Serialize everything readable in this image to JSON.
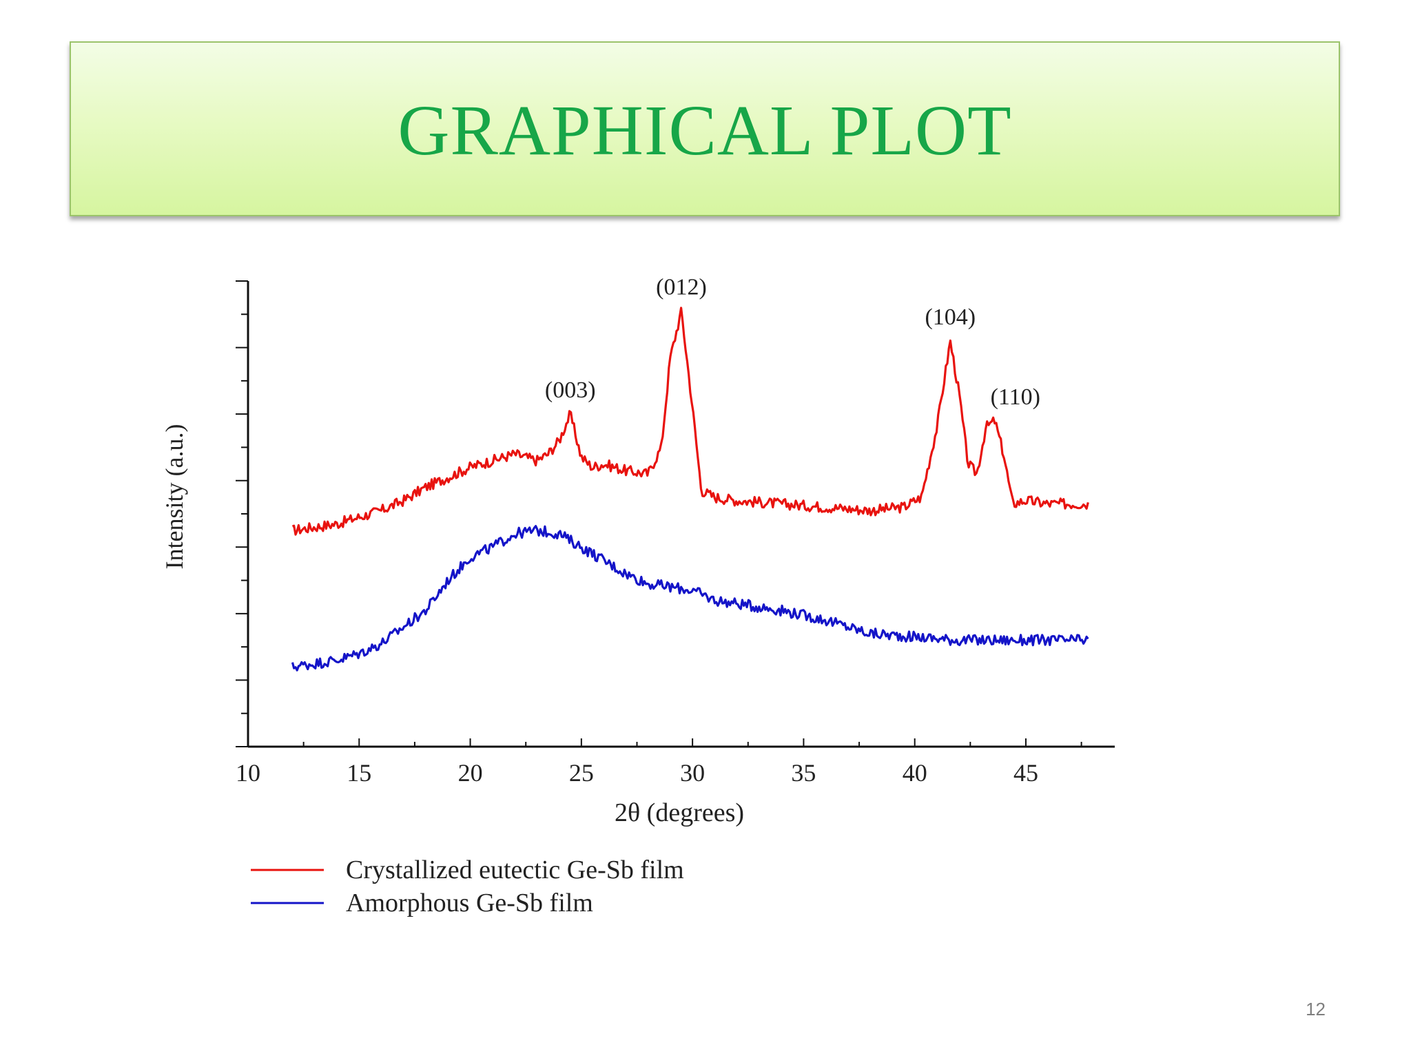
{
  "slide": {
    "title": "GRAPHICAL PLOT",
    "page_number": "12"
  },
  "colors": {
    "title": "#17a648",
    "banner_top": "#f3fde6",
    "banner_bottom": "#d6f5a0",
    "series_red": "#e8130f",
    "series_blue": "#1414c8"
  },
  "chart_data": {
    "type": "line",
    "xlabel": "2θ (degrees)",
    "ylabel": "Intensity (a.u.)",
    "xlim": [
      10,
      49
    ],
    "ylim": [
      0,
      14
    ],
    "x_ticks": [
      10,
      15,
      20,
      25,
      30,
      35,
      40,
      45
    ],
    "y_tick_labels_shown": false,
    "grid": false,
    "legend_position": "bottom-left",
    "series": [
      {
        "name": "Crystallized eutectic Ge-Sb film",
        "color": "#e8130f",
        "x": [
          12.0,
          14.0,
          16.0,
          17.0,
          18.0,
          19.0,
          20.0,
          21.0,
          22.0,
          22.5,
          23.0,
          23.5,
          24.0,
          24.5,
          25.0,
          25.5,
          26.0,
          27.0,
          28.0,
          28.6,
          29.0,
          29.5,
          30.0,
          30.4,
          31.0,
          32.0,
          34.0,
          36.0,
          38.0,
          39.5,
          40.3,
          41.0,
          41.6,
          42.0,
          42.4,
          42.8,
          43.2,
          43.6,
          44.0,
          44.4,
          45.0,
          46.0,
          47.8
        ],
        "y": [
          6.5,
          6.7,
          7.1,
          7.4,
          7.8,
          8.1,
          8.4,
          8.6,
          8.8,
          8.7,
          8.6,
          8.8,
          9.2,
          10.0,
          8.7,
          8.4,
          8.5,
          8.3,
          8.2,
          9.0,
          11.7,
          13.1,
          10.2,
          7.7,
          7.5,
          7.4,
          7.3,
          7.2,
          7.1,
          7.2,
          7.5,
          9.6,
          12.2,
          10.6,
          8.5,
          8.2,
          9.6,
          9.8,
          8.8,
          7.3,
          7.4,
          7.3,
          7.3
        ]
      },
      {
        "name": "Amorphous Ge-Sb film",
        "color": "#1414c8",
        "x": [
          12.0,
          13.0,
          14.0,
          15.0,
          16.0,
          17.0,
          18.0,
          19.0,
          20.0,
          21.0,
          22.0,
          23.0,
          24.0,
          25.0,
          26.0,
          27.0,
          28.0,
          29.0,
          30.0,
          31.0,
          32.0,
          34.0,
          36.0,
          38.0,
          40.0,
          42.0,
          44.0,
          46.0,
          47.8
        ],
        "y": [
          2.4,
          2.5,
          2.6,
          2.8,
          3.1,
          3.6,
          4.1,
          5.0,
          5.7,
          6.0,
          6.4,
          6.5,
          6.4,
          6.0,
          5.6,
          5.2,
          4.9,
          4.8,
          4.7,
          4.4,
          4.3,
          4.1,
          3.8,
          3.4,
          3.3,
          3.2,
          3.2,
          3.2,
          3.2
        ]
      }
    ],
    "annotations": [
      {
        "text": "(003)",
        "x": 24.5,
        "y": 10.0
      },
      {
        "text": "(012)",
        "x": 29.5,
        "y": 13.1
      },
      {
        "text": "(104)",
        "x": 41.6,
        "y": 12.2
      },
      {
        "text": "(110)",
        "x": 43.6,
        "y": 9.8
      }
    ]
  }
}
